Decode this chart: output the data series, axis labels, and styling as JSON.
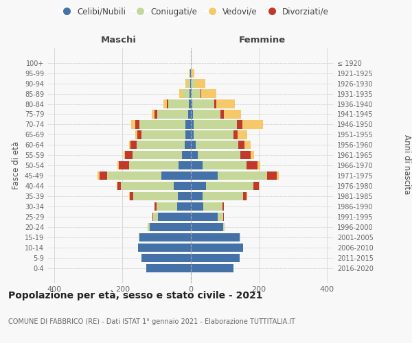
{
  "age_groups": [
    "0-4",
    "5-9",
    "10-14",
    "15-19",
    "20-24",
    "25-29",
    "30-34",
    "35-39",
    "40-44",
    "45-49",
    "50-54",
    "55-59",
    "60-64",
    "65-69",
    "70-74",
    "75-79",
    "80-84",
    "85-89",
    "90-94",
    "95-99",
    "100+"
  ],
  "birth_years": [
    "2016-2020",
    "2011-2015",
    "2006-2010",
    "2001-2005",
    "1996-2000",
    "1991-1995",
    "1986-1990",
    "1981-1985",
    "1976-1980",
    "1971-1975",
    "1966-1970",
    "1961-1965",
    "1956-1960",
    "1951-1955",
    "1946-1950",
    "1941-1945",
    "1936-1940",
    "1931-1935",
    "1926-1930",
    "1921-1925",
    "≤ 1920"
  ],
  "males": {
    "celibi": [
      130,
      145,
      155,
      150,
      120,
      95,
      40,
      38,
      50,
      85,
      35,
      25,
      18,
      15,
      15,
      8,
      5,
      4,
      2,
      1,
      0
    ],
    "coniugati": [
      0,
      0,
      0,
      2,
      5,
      15,
      60,
      130,
      155,
      160,
      145,
      145,
      140,
      130,
      135,
      90,
      60,
      20,
      8,
      3,
      0
    ],
    "vedovi": [
      0,
      0,
      0,
      0,
      0,
      0,
      0,
      2,
      2,
      5,
      5,
      5,
      5,
      5,
      12,
      8,
      10,
      10,
      5,
      2,
      0
    ],
    "divorziati": [
      0,
      0,
      0,
      0,
      0,
      2,
      5,
      10,
      10,
      22,
      30,
      22,
      18,
      12,
      12,
      8,
      5,
      0,
      0,
      0,
      0
    ]
  },
  "females": {
    "nubili": [
      125,
      145,
      155,
      145,
      95,
      80,
      38,
      35,
      45,
      80,
      35,
      22,
      15,
      10,
      10,
      8,
      5,
      4,
      2,
      1,
      0
    ],
    "coniugate": [
      0,
      0,
      0,
      2,
      5,
      15,
      55,
      120,
      140,
      145,
      130,
      125,
      125,
      115,
      125,
      80,
      65,
      25,
      12,
      3,
      0
    ],
    "vedove": [
      0,
      0,
      0,
      0,
      0,
      0,
      0,
      2,
      2,
      5,
      8,
      10,
      18,
      30,
      60,
      50,
      55,
      45,
      30,
      8,
      1
    ],
    "divorziate": [
      0,
      0,
      0,
      0,
      0,
      2,
      5,
      10,
      15,
      28,
      32,
      30,
      18,
      12,
      18,
      10,
      5,
      2,
      0,
      0,
      0
    ]
  },
  "colors": {
    "celibi": "#4472a8",
    "coniugati": "#c5d89a",
    "vedovi": "#f5c96a",
    "divorziati": "#c0392b"
  },
  "xlim": [
    -420,
    420
  ],
  "title": "Popolazione per età, sesso e stato civile - 2021",
  "subtitle": "COMUNE DI FABBRICO (RE) - Dati ISTAT 1° gennaio 2021 - Elaborazione TUTTITALIA.IT",
  "ylabel": "Fasce di età",
  "ylabel_right": "Anni di nascita",
  "xlabel_left": "Maschi",
  "xlabel_right": "Femmine",
  "bg_color": "#f8f8f8",
  "plot_bg": "#f8f8f8"
}
